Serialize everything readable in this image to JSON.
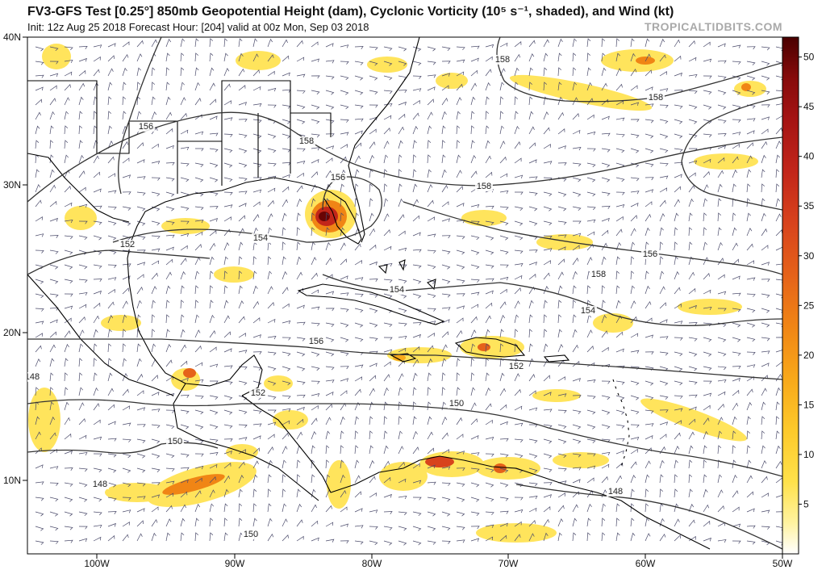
{
  "header": {
    "title": "FV3-GFS Test [0.25°] 850mb Geopotential Height (dam), Cyclonic Vorticity (10⁵ s⁻¹, shaded), and Wind (kt)",
    "subtitle": "Init: 12z Aug 25 2018   Forecast Hour: [204]   valid at 00z Mon, Sep 03 2018",
    "brand": "TROPICALTIDBITS.COM"
  },
  "map": {
    "lat_labels": [
      "40N",
      "30N",
      "20N",
      "10N"
    ],
    "lon_labels": [
      "100W",
      "90W",
      "80W",
      "70W",
      "60W",
      "50W"
    ],
    "contour_labels": [
      "158",
      "158",
      "156",
      "158",
      "156",
      "158",
      "152",
      "154",
      "156",
      "158",
      "154",
      "154",
      "156",
      "152",
      "152",
      "150",
      "150",
      "148",
      "148",
      "150",
      "148"
    ],
    "colorbar": {
      "ticks": [
        "50",
        "45",
        "40",
        "35",
        "30",
        "25",
        "20",
        "15",
        "10",
        "5"
      ],
      "colors": [
        "#ffffff",
        "#fff3a0",
        "#ffe14a",
        "#fdc92a",
        "#f8a81a",
        "#f08515",
        "#e5621a",
        "#d8431c",
        "#c2261a",
        "#a51414",
        "#870b0b",
        "#680404",
        "#4a0000"
      ]
    },
    "colors": {
      "land_border": "#000000",
      "contour": "#333333",
      "wind_barb": "#4a4a6a"
    }
  }
}
